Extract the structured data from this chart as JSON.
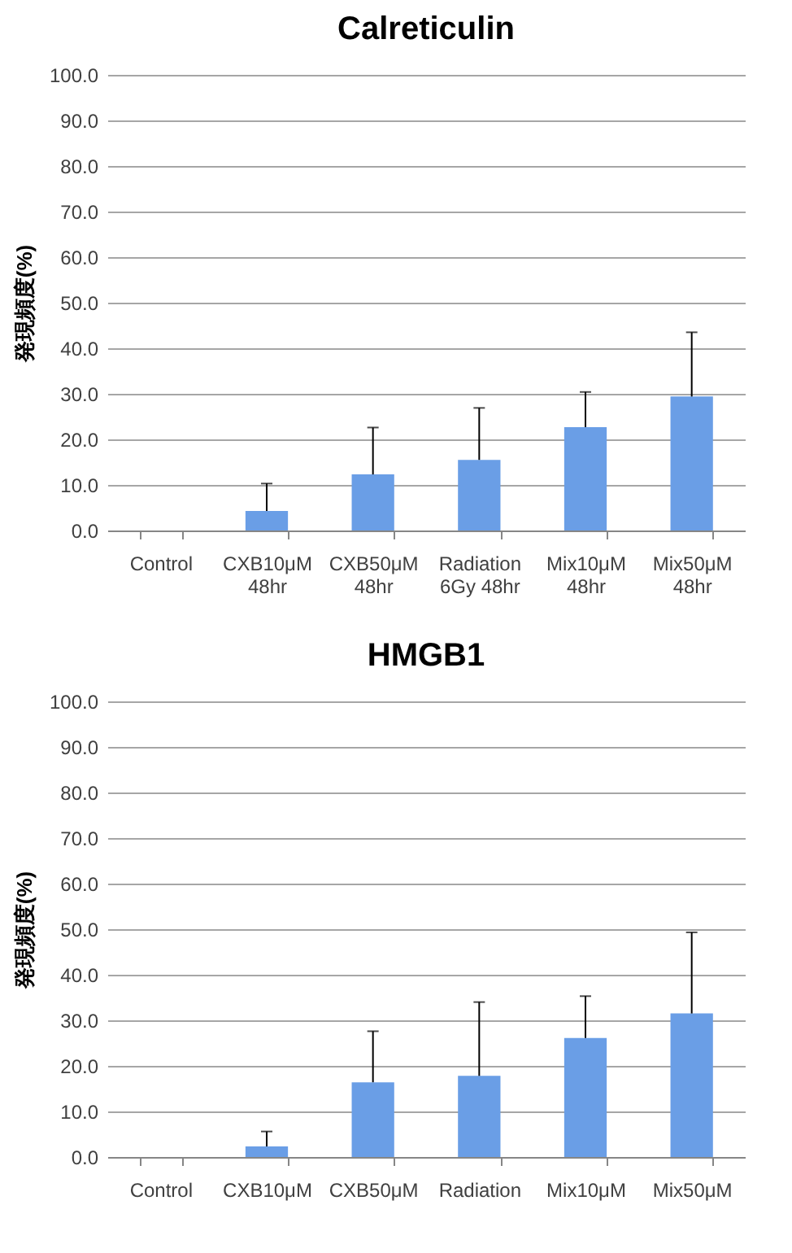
{
  "chart_data": [
    {
      "type": "bar",
      "title": "Calreticulin",
      "ylabel": "発現頻度(%)",
      "categories": [
        "Control",
        "CXB10μM\n48hr",
        "CXB50μM\n48hr",
        "Radiation\n6Gy 48hr",
        "Mix10μM\n48hr",
        "Mix50μM\n48hr"
      ],
      "values": [
        0,
        4.3,
        12.3,
        15.5,
        22.7,
        29.4
      ],
      "errors": [
        null,
        [
          4.3,
          10.3
        ],
        [
          12.3,
          22.6
        ],
        [
          15.5,
          26.9
        ],
        [
          22.7,
          30.4
        ],
        [
          29.4,
          43.5
        ]
      ],
      "color": "#6a9ee6",
      "ylim": [
        0,
        100
      ],
      "yticks": [
        {
          "value": 0,
          "label": "0.0"
        },
        {
          "value": 10,
          "label": "10.0"
        },
        {
          "value": 20,
          "label": "20.0"
        },
        {
          "value": 30,
          "label": "30.0"
        },
        {
          "value": 40,
          "label": "40.0"
        },
        {
          "value": 50,
          "label": "50.0"
        },
        {
          "value": 60,
          "label": "60.0"
        },
        {
          "value": 70,
          "label": "70.0"
        },
        {
          "value": 80,
          "label": "80.0"
        },
        {
          "value": 90,
          "label": "90.0"
        },
        {
          "value": 100,
          "label": "100.0"
        }
      ],
      "grid": "y"
    },
    {
      "type": "bar",
      "title": "HMGB1",
      "ylabel": "発現頻度(%)",
      "categories": [
        "Control",
        "CXB10μM",
        "CXB50μM",
        "Radiation",
        "Mix10μM",
        "Mix50μM"
      ],
      "values": [
        0,
        2.3,
        16.4,
        17.8,
        26.1,
        31.5
      ],
      "errors": [
        null,
        [
          2.3,
          5.6
        ],
        [
          16.4,
          27.6
        ],
        [
          17.8,
          34.0
        ],
        [
          26.1,
          35.3
        ],
        [
          31.5,
          49.3
        ]
      ],
      "color": "#6a9ee6",
      "ylim": [
        0,
        100
      ],
      "yticks": [
        {
          "value": 0,
          "label": "0.0"
        },
        {
          "value": 10,
          "label": "10.0"
        },
        {
          "value": 20,
          "label": "20.0"
        },
        {
          "value": 30,
          "label": "30.0"
        },
        {
          "value": 40,
          "label": "40.0"
        },
        {
          "value": 50,
          "label": "50.0"
        },
        {
          "value": 60,
          "label": "60.0"
        },
        {
          "value": 70,
          "label": "70.0"
        },
        {
          "value": 80,
          "label": "80.0"
        },
        {
          "value": 90,
          "label": "90.0"
        },
        {
          "value": 100,
          "label": "100.0"
        }
      ],
      "grid": "y"
    }
  ]
}
